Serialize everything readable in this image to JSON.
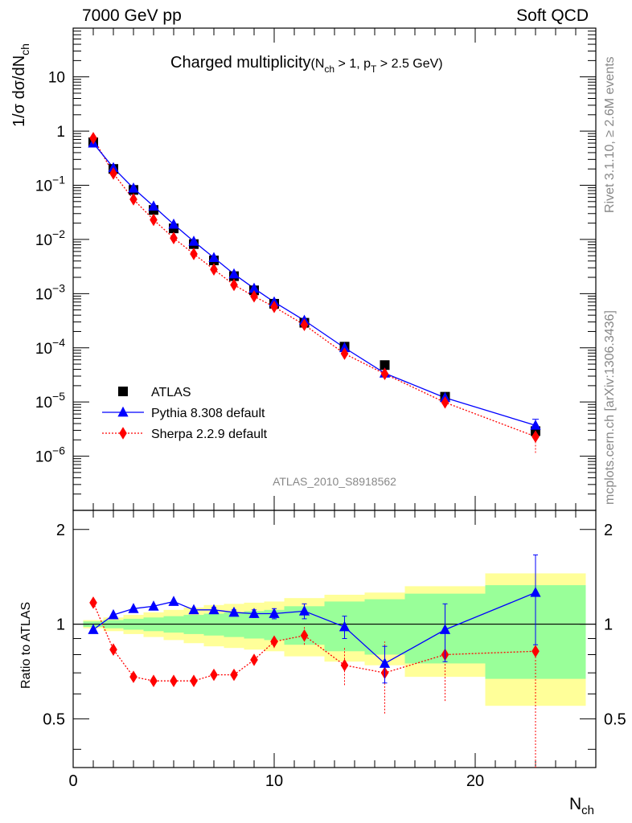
{
  "header": {
    "left": "7000 GeV pp",
    "right": "Soft QCD"
  },
  "side_labels": {
    "rivet": "Rivet 3.1.10, ≥ 2.6M events",
    "mcplots": "mcplots.cern.ch [arXiv:1306.3436]"
  },
  "chart_data": {
    "type": "scatter",
    "title_main": "Charged multiplicity",
    "title_sub": "(N",
    "title_sub2": "ch",
    "title_sub3": " > 1, p",
    "title_sub4": "T",
    "title_sub5": " > 2.5 GeV)",
    "analysis_id": "ATLAS_2010_S8918562",
    "ylabel_main": "1/σ dσ/dN",
    "ylabel_main_sub": "ch",
    "ylabel_ratio": "Ratio to ATLAS",
    "xlabel": "N",
    "xlabel_sub": "ch",
    "xlim": [
      0,
      26
    ],
    "ylim_log10": [
      -7,
      1.9
    ],
    "ratio_ylim": [
      0.35,
      2.3
    ],
    "log_y": true,
    "x_ticks": [
      0,
      10,
      20
    ],
    "x_tick_labels": [
      "0",
      "10",
      "20"
    ],
    "y_ticks_exp": [
      -6,
      -5,
      -4,
      -3,
      -2,
      -1,
      0,
      1
    ],
    "y_tick_labels": [
      {
        "base": "10",
        "exp": "−6"
      },
      {
        "base": "10",
        "exp": "−5"
      },
      {
        "base": "10",
        "exp": "−4"
      },
      {
        "base": "10",
        "exp": "−3"
      },
      {
        "base": "10",
        "exp": "−2"
      },
      {
        "base": "10",
        "exp": "−1"
      },
      {
        "base": "1",
        "exp": ""
      },
      {
        "base": "10",
        "exp": ""
      }
    ],
    "ratio_ticks": [
      0.5,
      1,
      2
    ],
    "ratio_tick_labels": [
      "0.5",
      "1",
      "2"
    ],
    "legend": [
      "ATLAS",
      "Pythia 8.308 default",
      "Sherpa 2.2.9 default"
    ],
    "legend_position": "bottom-left",
    "colors": {
      "atlas": "#000000",
      "pythia": "#0000ff",
      "sherpa": "#ff0000",
      "band_inner": "#99ff99",
      "band_outer": "#ffff99"
    },
    "atlas": {
      "x": [
        1,
        2,
        3,
        4,
        5,
        6,
        7,
        8,
        9,
        10,
        11.5,
        13.5,
        15.5,
        18.5,
        23
      ],
      "y": [
        0.62,
        0.2,
        0.082,
        0.035,
        0.016,
        0.0082,
        0.0041,
        0.0021,
        0.00115,
        0.00065,
        0.00029,
        0.000105,
        4.8e-05,
        1.25e-05,
        2.9e-06
      ],
      "ratio_err_inner": [
        0.02,
        0.03,
        0.04,
        0.05,
        0.06,
        0.07,
        0.08,
        0.09,
        0.1,
        0.11,
        0.14,
        0.18,
        0.2,
        0.25,
        0.33
      ],
      "ratio_err_outer": [
        0.03,
        0.05,
        0.07,
        0.09,
        0.11,
        0.13,
        0.15,
        0.16,
        0.17,
        0.18,
        0.21,
        0.24,
        0.26,
        0.32,
        0.45
      ],
      "bin_edges": [
        0.5,
        1.5,
        2.5,
        3.5,
        4.5,
        5.5,
        6.5,
        7.5,
        8.5,
        9.5,
        10.5,
        12.5,
        14.5,
        16.5,
        20.5,
        25.5
      ]
    },
    "pythia": {
      "x": [
        1,
        2,
        3,
        4,
        5,
        6,
        7,
        8,
        9,
        10,
        11.5,
        13.5,
        15.5,
        18.5,
        23
      ],
      "y": [
        0.6,
        0.21,
        0.088,
        0.041,
        0.019,
        0.0092,
        0.0046,
        0.0023,
        0.00125,
        0.0007,
        0.00032,
        0.0001,
        3.4e-05,
        1.2e-05,
        3.7e-06
      ],
      "ratio": [
        0.96,
        1.07,
        1.12,
        1.14,
        1.18,
        1.11,
        1.11,
        1.09,
        1.08,
        1.08,
        1.1,
        0.98,
        0.75,
        0.96,
        1.26
      ],
      "ratio_err": [
        0.01,
        0.01,
        0.01,
        0.01,
        0.01,
        0.01,
        0.02,
        0.02,
        0.03,
        0.04,
        0.06,
        0.08,
        0.1,
        0.2,
        0.4
      ]
    },
    "sherpa": {
      "x": [
        1,
        2,
        3,
        4,
        5,
        6,
        7,
        8,
        9,
        10,
        11.5,
        13.5,
        15.5,
        18.5,
        23
      ],
      "y": [
        0.74,
        0.165,
        0.055,
        0.023,
        0.0106,
        0.0054,
        0.0028,
        0.00145,
        0.00089,
        0.00057,
        0.000265,
        7.8e-05,
        3.3e-05,
        9.8e-06,
        2.3e-06
      ],
      "ratio": [
        1.17,
        0.83,
        0.68,
        0.66,
        0.66,
        0.66,
        0.69,
        0.69,
        0.77,
        0.88,
        0.92,
        0.74,
        0.7,
        0.8,
        0.82
      ],
      "ratio_err": [
        0.01,
        0.01,
        0.01,
        0.01,
        0.01,
        0.01,
        0.02,
        0.02,
        0.03,
        0.04,
        0.06,
        0.1,
        0.18,
        0.23,
        0.5
      ]
    }
  }
}
